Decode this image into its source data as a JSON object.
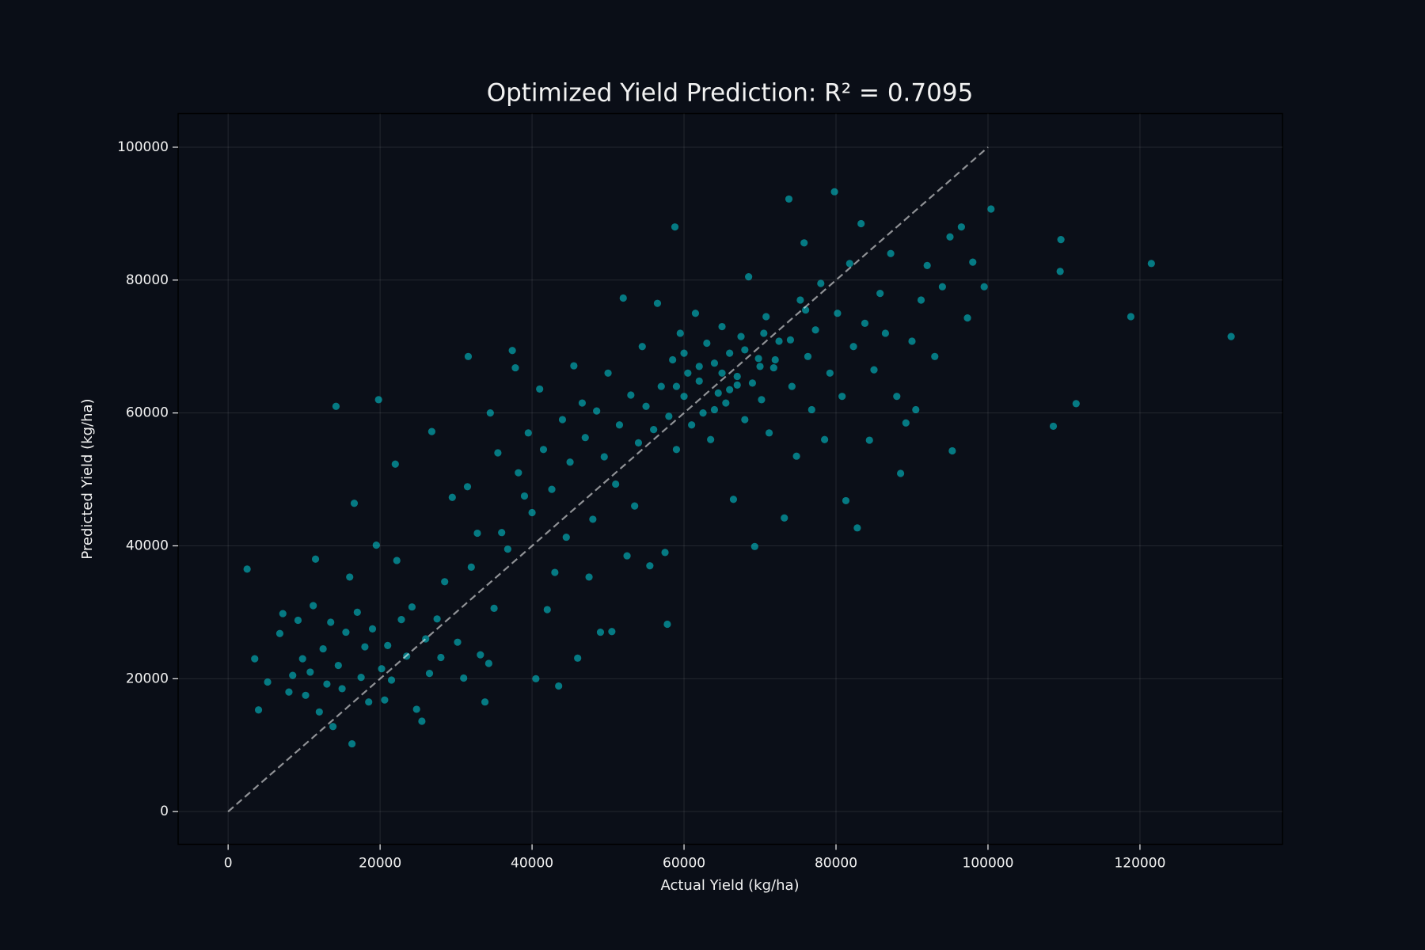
{
  "chart_data": {
    "type": "scatter",
    "title": "Optimized Yield Prediction: R² = 0.7095",
    "xlabel": "Actual Yield (kg/ha)",
    "ylabel": "Predicted Yield (kg/ha)",
    "color": "#00e5ee",
    "grid": true,
    "xlim": [
      -6580,
      138760
    ],
    "ylim": [
      -4925,
      105060
    ],
    "xticks": [
      0,
      20000,
      40000,
      60000,
      80000,
      100000,
      120000
    ],
    "yticks": [
      0,
      20000,
      40000,
      60000,
      80000,
      100000
    ],
    "reference_line": {
      "x": [
        0,
        100000
      ],
      "y": [
        0,
        100000
      ]
    },
    "x": [
      2500,
      3500,
      4000,
      5200,
      6800,
      7200,
      8000,
      8500,
      9200,
      9800,
      10200,
      10800,
      11200,
      11500,
      12000,
      12500,
      13000,
      13500,
      13800,
      14200,
      14500,
      15000,
      15500,
      16000,
      16300,
      16600,
      17000,
      17500,
      18000,
      18500,
      19000,
      19500,
      19800,
      20200,
      20600,
      21000,
      21500,
      22000,
      22200,
      22800,
      23500,
      24200,
      24800,
      25500,
      26000,
      26500,
      26800,
      27500,
      28000,
      28500,
      29500,
      30200,
      31000,
      31500,
      32000,
      32800,
      33200,
      33800,
      34300,
      35000,
      31600,
      34500,
      35500,
      36000,
      36800,
      37400,
      37800,
      38200,
      39000,
      39500,
      40000,
      40500,
      41000,
      41500,
      42000,
      42600,
      43000,
      43500,
      44000,
      44500,
      45000,
      45500,
      46000,
      46600,
      47000,
      47500,
      48000,
      48500,
      49000,
      49500,
      50000,
      50500,
      51000,
      51500,
      52000,
      52500,
      53000,
      53500,
      54000,
      54500,
      55000,
      55500,
      56000,
      56500,
      57000,
      57500,
      57800,
      58000,
      58500,
      58800,
      59000,
      59500,
      60000,
      60500,
      61000,
      61500,
      62000,
      62500,
      63000,
      63500,
      64000,
      64500,
      65000,
      65500,
      66000,
      66500,
      67000,
      67500,
      68000,
      68500,
      69000,
      69300,
      69800,
      70200,
      70800,
      71200,
      71800,
      72500,
      73200,
      73800,
      74200,
      74800,
      75300,
      75800,
      76300,
      76800,
      77300,
      78000,
      78500,
      79200,
      79800,
      80200,
      80800,
      81300,
      81800,
      82300,
      82800,
      83300,
      83800,
      84400,
      85000,
      85800,
      86500,
      87200,
      88000,
      88500,
      89200,
      90000,
      90500,
      91200,
      92000,
      93000,
      94000,
      95000,
      95300,
      96500,
      97300,
      98000,
      99500,
      100400,
      108600,
      109500,
      109600,
      111600,
      118800,
      121500,
      132000,
      60000,
      65000,
      70000,
      62000,
      66000,
      68000,
      72000,
      74000,
      64000,
      67000,
      70500,
      59000,
      76000
    ],
    "values": [
      36500,
      23000,
      15300,
      19500,
      26800,
      29800,
      18000,
      20500,
      28800,
      23000,
      17500,
      21000,
      31000,
      38000,
      15000,
      24500,
      19200,
      28500,
      12800,
      61000,
      22000,
      18500,
      27000,
      35300,
      10200,
      46400,
      30000,
      20200,
      24800,
      16500,
      27500,
      40100,
      62000,
      21500,
      16800,
      25000,
      19800,
      52300,
      37800,
      28900,
      23400,
      30800,
      15400,
      13600,
      26000,
      20800,
      57200,
      29000,
      23200,
      34600,
      47300,
      25500,
      20100,
      48900,
      36800,
      41900,
      23600,
      16500,
      22300,
      30600,
      68500,
      60000,
      54000,
      42000,
      39500,
      69400,
      66800,
      51000,
      47500,
      57000,
      45000,
      20000,
      63600,
      54500,
      30400,
      48500,
      36000,
      18900,
      59000,
      41300,
      52600,
      67100,
      23100,
      61500,
      56300,
      35300,
      44000,
      60300,
      27000,
      53400,
      66000,
      27100,
      49300,
      58200,
      77300,
      38500,
      62700,
      46000,
      55500,
      70000,
      61000,
      37000,
      57500,
      76500,
      64000,
      39000,
      28200,
      59500,
      68000,
      88000,
      54500,
      72000,
      62500,
      66000,
      58200,
      75000,
      64800,
      60000,
      70500,
      56000,
      67500,
      63000,
      73000,
      61500,
      69000,
      47000,
      65500,
      71500,
      59000,
      80500,
      64500,
      39900,
      68200,
      62000,
      74500,
      57000,
      66800,
      70800,
      44200,
      92200,
      64000,
      53500,
      77000,
      85600,
      68500,
      60500,
      72500,
      79500,
      56000,
      66000,
      93300,
      75000,
      62500,
      46800,
      82500,
      70000,
      42700,
      88500,
      73500,
      55900,
      66500,
      78000,
      72000,
      84000,
      62500,
      50900,
      58500,
      70800,
      60500,
      77000,
      82200,
      68500,
      79000,
      86500,
      54300,
      88000,
      74300,
      82700,
      79000,
      90700,
      58000,
      81300,
      86100,
      61400,
      74500,
      82500,
      71500,
      69000,
      66000,
      67000,
      67000,
      63500,
      69500,
      68000,
      71000,
      60500,
      64200,
      72000,
      64000,
      75500
    ]
  }
}
